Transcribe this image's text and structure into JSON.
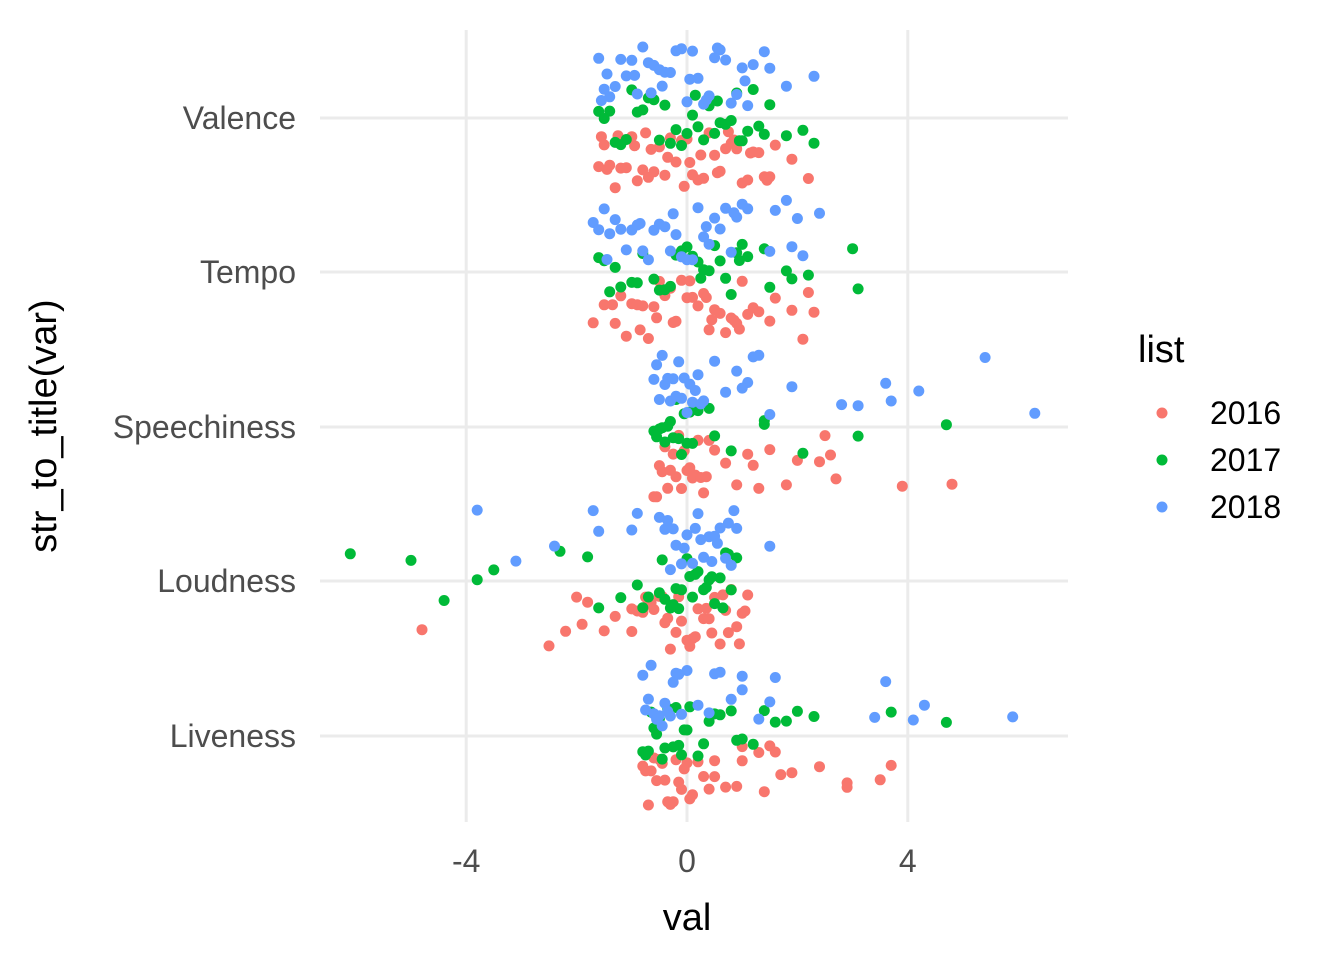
{
  "chart_data": {
    "type": "scatter",
    "xlabel": "val",
    "ylabel": "str_to_title(var)",
    "xlim": [
      -6.4,
      6.8
    ],
    "xticks": [
      -4,
      0,
      4
    ],
    "xtick_labels": [
      "-4",
      "0",
      "4"
    ],
    "categories": [
      "Valence",
      "Tempo",
      "Speechiness",
      "Loudness",
      "Liveness"
    ],
    "jitter": "vertical jitter within each category band; 2018 drawn above, 2017 middle, 2016 below each category line",
    "grid": true,
    "legend": {
      "title": "list",
      "position": "right",
      "entries": [
        {
          "label": "2016",
          "color": "#F8766D"
        },
        {
          "label": "2017",
          "color": "#00BA38"
        },
        {
          "label": "2018",
          "color": "#619CFF"
        }
      ]
    },
    "series": [
      {
        "name": "2016",
        "color": "#F8766D",
        "points": {
          "Valence": [
            -1.6,
            -1.5,
            -1.4,
            -1.3,
            -1.2,
            -1.1,
            -1.0,
            -0.9,
            -0.8,
            -0.7,
            -0.6,
            -0.5,
            -0.4,
            -0.3,
            -0.2,
            -0.1,
            0.0,
            0.1,
            0.2,
            0.3,
            0.4,
            0.5,
            0.6,
            0.7,
            0.8,
            0.9,
            1.0,
            1.1,
            1.2,
            1.3,
            1.4,
            -1.55,
            -1.25,
            -0.95,
            -0.65,
            -0.35,
            -0.05,
            0.25,
            0.55,
            0.85,
            1.15,
            1.45,
            1.5,
            1.6,
            1.9,
            2.2,
            -1.45,
            -0.75,
            0.05,
            0.75
          ],
          "Tempo": [
            -1.7,
            -1.5,
            -1.3,
            -1.2,
            -1.0,
            -0.9,
            -0.8,
            -0.7,
            -0.6,
            -0.5,
            -0.4,
            -0.3,
            -0.2,
            -0.1,
            0.0,
            0.1,
            0.2,
            0.3,
            0.4,
            0.5,
            0.6,
            0.7,
            0.8,
            0.9,
            1.0,
            1.1,
            1.2,
            1.3,
            1.5,
            1.6,
            1.9,
            2.1,
            2.2,
            2.3,
            -1.1,
            -0.55,
            0.05,
            0.45,
            0.85,
            -1.35,
            -0.85,
            -0.25,
            0.35,
            0.95
          ],
          "Speechiness": [
            -0.6,
            -0.5,
            -0.4,
            -0.3,
            -0.2,
            -0.1,
            0.0,
            0.1,
            0.2,
            0.3,
            0.4,
            0.5,
            0.7,
            0.9,
            1.1,
            1.3,
            1.5,
            1.8,
            2.0,
            2.4,
            2.5,
            2.6,
            2.7,
            3.9,
            4.8,
            -0.55,
            -0.45,
            -0.35,
            -0.25,
            -0.15,
            -0.05,
            0.05,
            0.15,
            0.25,
            0.35,
            1.2
          ],
          "Loudness": [
            -4.8,
            -2.5,
            -2.2,
            -2.0,
            -1.9,
            -1.8,
            -1.5,
            -1.3,
            -1.0,
            -1.0,
            -0.9,
            -0.8,
            -0.7,
            -0.6,
            -0.5,
            -0.4,
            -0.3,
            -0.2,
            -0.1,
            0.0,
            0.1,
            0.2,
            0.3,
            0.4,
            0.5,
            0.6,
            0.7,
            0.8,
            0.9,
            1.0,
            1.1,
            -0.75,
            -0.45,
            -0.15,
            0.15,
            0.45,
            0.75,
            1.05,
            -0.65,
            -0.35,
            0.05,
            0.35,
            0.65,
            0.95
          ],
          "Liveness": [
            -0.8,
            -0.7,
            -0.6,
            -0.5,
            -0.4,
            -0.3,
            -0.2,
            -0.1,
            0.0,
            0.1,
            0.2,
            0.3,
            0.4,
            0.5,
            0.7,
            0.9,
            1.0,
            1.3,
            1.4,
            1.5,
            1.6,
            1.7,
            1.9,
            2.4,
            2.9,
            2.9,
            3.5,
            3.7,
            -0.75,
            -0.65,
            -0.55,
            -0.45,
            -0.35,
            -0.25,
            -0.15,
            -0.05,
            0.05,
            0.5,
            1.0
          ]
        }
      },
      {
        "name": "2017",
        "color": "#00BA38",
        "points": {
          "Valence": [
            -1.6,
            -1.4,
            -1.3,
            -1.2,
            -1.0,
            -0.9,
            -0.8,
            -0.7,
            -0.5,
            -0.4,
            -0.3,
            -0.2,
            -0.1,
            0.0,
            0.1,
            0.2,
            0.3,
            0.4,
            0.5,
            0.6,
            0.7,
            0.8,
            0.9,
            1.0,
            1.1,
            1.2,
            1.3,
            1.5,
            1.8,
            2.1,
            2.3,
            -1.5,
            -1.1,
            -0.6,
            0.15,
            0.55,
            0.95,
            1.4
          ],
          "Tempo": [
            -1.6,
            -1.5,
            -1.4,
            -1.2,
            -1.0,
            -0.9,
            -0.8,
            -0.5,
            -0.4,
            -0.3,
            -0.2,
            -0.1,
            0.0,
            0.1,
            0.2,
            0.3,
            0.4,
            0.5,
            0.6,
            0.7,
            0.8,
            0.9,
            1.0,
            1.1,
            1.5,
            1.8,
            1.9,
            2.2,
            3.0,
            3.1,
            -1.3,
            -0.6,
            0.25,
            0.95,
            1.4
          ],
          "Speechiness": [
            -0.6,
            -0.5,
            -0.4,
            -0.3,
            -0.2,
            -0.1,
            0.0,
            0.1,
            0.2,
            0.4,
            0.5,
            0.8,
            1.4,
            1.4,
            2.1,
            3.1,
            4.7,
            -0.55,
            -0.45,
            -0.35,
            -0.25,
            -0.15,
            -0.05,
            0.05
          ],
          "Loudness": [
            -6.1,
            -5.0,
            -4.4,
            -3.8,
            -3.5,
            -2.3,
            -1.8,
            -1.6,
            -1.2,
            -0.9,
            -0.8,
            -0.7,
            -0.5,
            -0.4,
            -0.3,
            -0.2,
            -0.1,
            0.0,
            0.1,
            0.2,
            0.3,
            0.4,
            0.5,
            0.6,
            0.7,
            0.8,
            0.9,
            -0.45,
            -0.15,
            0.15,
            0.45,
            0.75,
            -0.25,
            0.05,
            0.35,
            0.65
          ],
          "Liveness": [
            -0.8,
            -0.7,
            -0.6,
            -0.5,
            -0.4,
            -0.3,
            -0.2,
            -0.1,
            0.0,
            0.2,
            0.3,
            0.4,
            0.6,
            0.8,
            0.9,
            1.0,
            1.2,
            1.4,
            1.6,
            1.8,
            2.0,
            2.3,
            3.7,
            4.7,
            -0.75,
            -0.65,
            -0.55,
            -0.45,
            -0.35,
            -0.25,
            -0.15,
            -0.05,
            0.05,
            0.5
          ]
        }
      },
      {
        "name": "2018",
        "color": "#619CFF",
        "points": {
          "Valence": [
            -1.6,
            -1.5,
            -1.4,
            -1.3,
            -1.2,
            -1.1,
            -1.0,
            -0.9,
            -0.8,
            -0.7,
            -0.6,
            -0.5,
            -0.4,
            -0.3,
            -0.2,
            -0.1,
            0.0,
            0.1,
            0.2,
            0.3,
            0.4,
            0.5,
            0.6,
            0.7,
            0.8,
            0.9,
            1.0,
            1.1,
            1.2,
            1.4,
            1.5,
            1.8,
            2.3,
            -1.45,
            -0.95,
            -0.45,
            0.05,
            0.55,
            1.05,
            -1.55,
            -0.65,
            0.35
          ],
          "Tempo": [
            -1.7,
            -1.6,
            -1.5,
            -1.4,
            -1.3,
            -1.2,
            -1.1,
            -1.0,
            -0.9,
            -0.8,
            -0.7,
            -0.6,
            -0.5,
            -0.4,
            -0.3,
            -0.2,
            -0.1,
            0.0,
            0.1,
            0.2,
            0.3,
            0.4,
            0.5,
            0.6,
            0.7,
            0.8,
            0.9,
            1.0,
            1.1,
            1.5,
            1.6,
            1.8,
            1.9,
            2.0,
            2.1,
            2.4,
            -1.45,
            -0.85,
            -0.25,
            0.35,
            0.85
          ],
          "Speechiness": [
            -0.6,
            -0.5,
            -0.4,
            -0.3,
            -0.2,
            -0.1,
            0.0,
            0.1,
            0.2,
            0.3,
            0.5,
            0.7,
            0.9,
            1.1,
            1.2,
            1.5,
            1.9,
            2.8,
            3.1,
            3.6,
            3.7,
            4.2,
            5.4,
            6.3,
            -0.55,
            -0.45,
            -0.35,
            -0.25,
            -0.15,
            -0.05,
            0.05,
            0.15,
            0.25,
            1.0,
            1.3
          ],
          "Loudness": [
            -3.1,
            -3.8,
            -2.4,
            -1.7,
            -1.6,
            -1.0,
            -0.9,
            -0.5,
            -0.4,
            -0.3,
            -0.2,
            -0.1,
            0.0,
            0.1,
            0.2,
            0.3,
            0.4,
            0.5,
            0.6,
            0.7,
            0.8,
            0.9,
            1.5,
            -0.35,
            -0.05,
            0.25,
            0.55,
            0.85,
            -0.25,
            0.15,
            0.45,
            0.75
          ],
          "Liveness": [
            -0.8,
            -0.7,
            -0.6,
            -0.5,
            -0.4,
            -0.3,
            -0.2,
            -0.1,
            0.0,
            0.2,
            0.4,
            0.6,
            0.8,
            1.0,
            1.3,
            1.5,
            1.6,
            3.4,
            3.6,
            4.1,
            4.3,
            5.9,
            -0.75,
            -0.65,
            -0.55,
            -0.45,
            -0.35,
            -0.25,
            -0.15,
            0.5,
            1.0
          ]
        }
      }
    ]
  }
}
